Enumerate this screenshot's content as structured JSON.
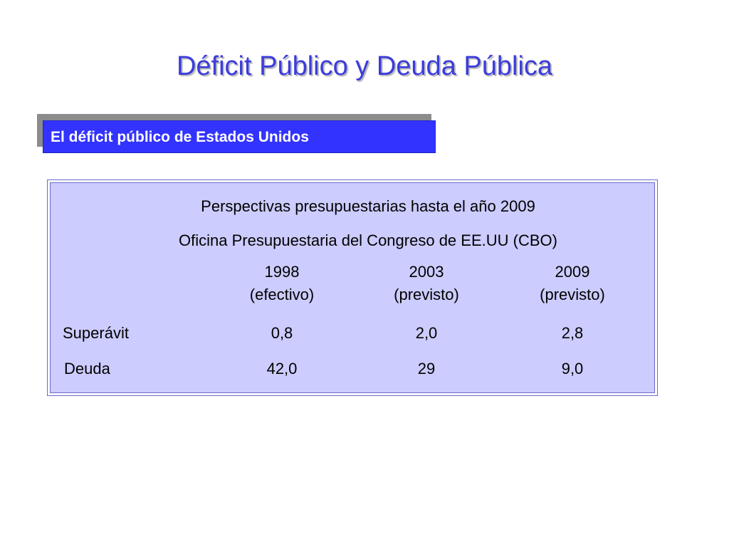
{
  "slide": {
    "title": "Déficit Público y Deuda Pública",
    "subtitle": "El déficit público de Estados Unidos"
  },
  "table": {
    "caption_line1": "Perspectivas presupuestarias hasta el año 2009",
    "caption_line2": "Oficina Presupuestaria del Congreso de EE.UU (CBO)",
    "columns": [
      {
        "year": "1998",
        "note": "(efectivo)"
      },
      {
        "year": "2003",
        "note": "(previsto)"
      },
      {
        "year": "2009",
        "note": "(previsto)"
      }
    ],
    "rows": [
      {
        "label": "Superávit",
        "values": [
          "0,8",
          "2,0",
          "2,8"
        ]
      },
      {
        "label": "Deuda",
        "values": [
          "42,0",
          "29",
          "9,0"
        ]
      }
    ]
  },
  "colors": {
    "title": "#3c3cdc",
    "subtitle_bg": "#3333ff",
    "table_bg": "#ccccff"
  }
}
